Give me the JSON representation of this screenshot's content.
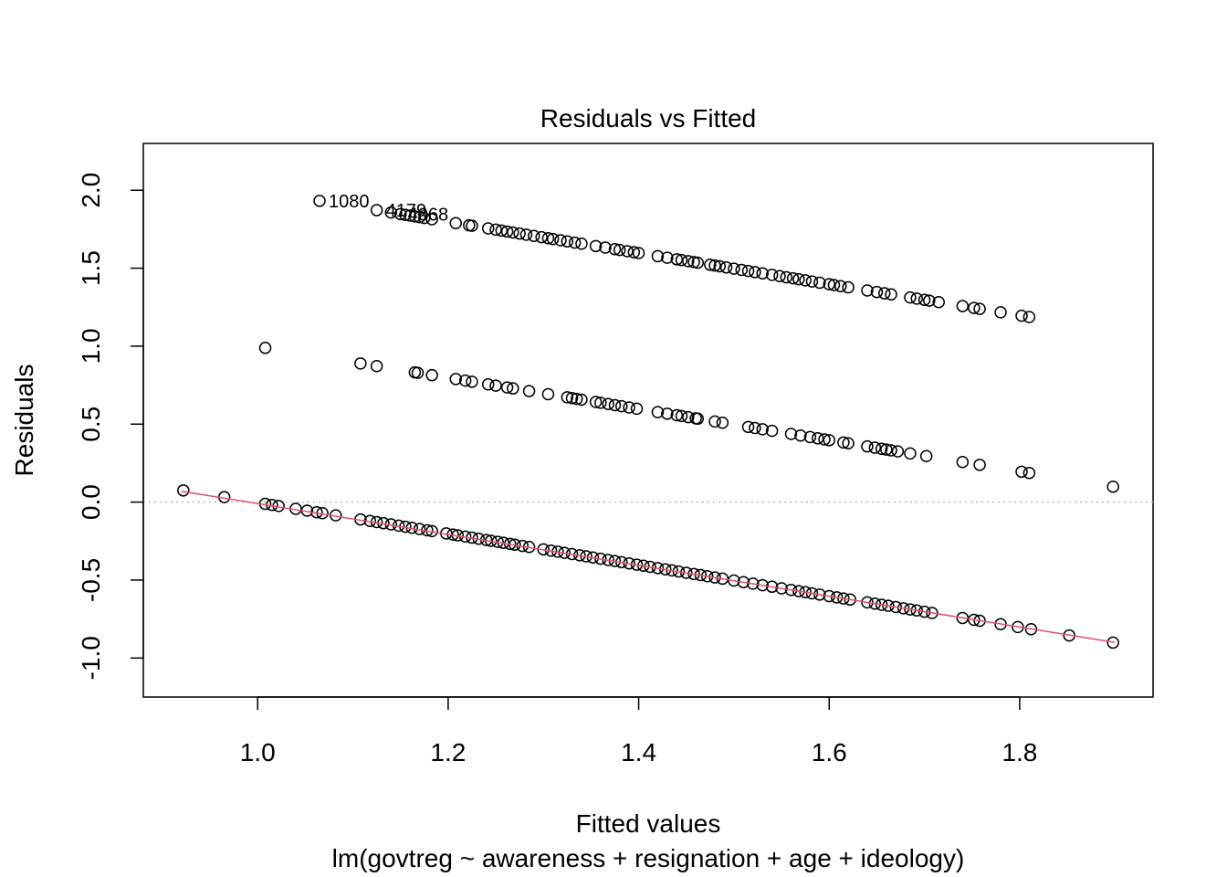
{
  "chart_data": {
    "type": "scatter",
    "title": "Residuals vs Fitted",
    "xlabel": "Fitted values",
    "subtitle": "lm(govtreg ~ awareness + resignation + age + ideology)",
    "ylabel": "Residuals",
    "xlim": [
      0.88,
      1.94
    ],
    "ylim": [
      -1.25,
      2.3
    ],
    "xticks": [
      1.0,
      1.2,
      1.4,
      1.6,
      1.8
    ],
    "xtick_labels": [
      "1.0",
      "1.2",
      "1.4",
      "1.6",
      "1.8"
    ],
    "yticks": [
      -1.0,
      -0.5,
      0.0,
      0.5,
      1.0,
      1.5,
      2.0
    ],
    "ytick_labels": [
      "-1.0",
      "-0.5",
      "0.0",
      "0.5",
      "1.0",
      "1.5",
      "2.0"
    ],
    "grid": false,
    "zero_line": {
      "y": 0,
      "style": "dotted",
      "color": "#bbbbbb"
    },
    "smooth_line": {
      "color": "#df536b",
      "x": [
        0.92,
        1.9
      ],
      "y": [
        0.07,
        -0.9
      ]
    },
    "point_color": "#000000",
    "bands": [
      {
        "residual_at_fitted_0": 2.997,
        "fitted": [
          1.065,
          1.125,
          1.14,
          1.15,
          1.155,
          1.16,
          1.165,
          1.17,
          1.175,
          1.183,
          1.208,
          1.222,
          1.225,
          1.242,
          1.25,
          1.256,
          1.262,
          1.268,
          1.275,
          1.282,
          1.29,
          1.298,
          1.305,
          1.31,
          1.318,
          1.325,
          1.333,
          1.34,
          1.355,
          1.365,
          1.375,
          1.38,
          1.388,
          1.395,
          1.4,
          1.42,
          1.43,
          1.44,
          1.445,
          1.452,
          1.458,
          1.462,
          1.475,
          1.48,
          1.485,
          1.492,
          1.5,
          1.508,
          1.515,
          1.522,
          1.53,
          1.54,
          1.548,
          1.555,
          1.562,
          1.568,
          1.575,
          1.582,
          1.59,
          1.6,
          1.605,
          1.612,
          1.62,
          1.64,
          1.65,
          1.658,
          1.665,
          1.685,
          1.692,
          1.7,
          1.705,
          1.715,
          1.74,
          1.752,
          1.758,
          1.78,
          1.802,
          1.81
        ]
      },
      {
        "residual_at_fitted_0": 1.997,
        "fitted": [
          1.008,
          1.108,
          1.125,
          1.165,
          1.168,
          1.183,
          1.208,
          1.218,
          1.225,
          1.242,
          1.25,
          1.262,
          1.268,
          1.285,
          1.305,
          1.325,
          1.33,
          1.335,
          1.34,
          1.355,
          1.36,
          1.368,
          1.375,
          1.382,
          1.39,
          1.398,
          1.42,
          1.43,
          1.44,
          1.445,
          1.452,
          1.46,
          1.462,
          1.48,
          1.488,
          1.515,
          1.522,
          1.53,
          1.54,
          1.56,
          1.57,
          1.58,
          1.588,
          1.595,
          1.6,
          1.615,
          1.62,
          1.64,
          1.648,
          1.655,
          1.66,
          1.665,
          1.672,
          1.685,
          1.702,
          1.74,
          1.758,
          1.802,
          1.81,
          1.898
        ]
      },
      {
        "residual_at_fitted_0": 0.997,
        "fitted": [
          0.922,
          0.965,
          1.008,
          1.015,
          1.022,
          1.04,
          1.052,
          1.062,
          1.068,
          1.082,
          1.108,
          1.118,
          1.125,
          1.132,
          1.14,
          1.148,
          1.155,
          1.162,
          1.17,
          1.178,
          1.183,
          1.198,
          1.205,
          1.21,
          1.218,
          1.225,
          1.232,
          1.24,
          1.245,
          1.252,
          1.258,
          1.265,
          1.27,
          1.278,
          1.285,
          1.3,
          1.308,
          1.315,
          1.322,
          1.33,
          1.338,
          1.345,
          1.352,
          1.36,
          1.368,
          1.375,
          1.382,
          1.39,
          1.398,
          1.405,
          1.412,
          1.42,
          1.428,
          1.435,
          1.442,
          1.45,
          1.458,
          1.465,
          1.472,
          1.48,
          1.488,
          1.5,
          1.51,
          1.52,
          1.53,
          1.54,
          1.55,
          1.56,
          1.568,
          1.575,
          1.582,
          1.59,
          1.6,
          1.608,
          1.615,
          1.622,
          1.64,
          1.648,
          1.655,
          1.662,
          1.67,
          1.678,
          1.685,
          1.692,
          1.7,
          1.708,
          1.74,
          1.752,
          1.758,
          1.78,
          1.798,
          1.812,
          1.852,
          1.898
        ]
      }
    ],
    "annotations": [
      {
        "text": "1080",
        "x": 1.065,
        "y": 1.932
      },
      {
        "text": "4179",
        "x": 1.125,
        "y": 1.872
      },
      {
        "text": "4068",
        "x": 1.148,
        "y": 1.845
      }
    ]
  }
}
